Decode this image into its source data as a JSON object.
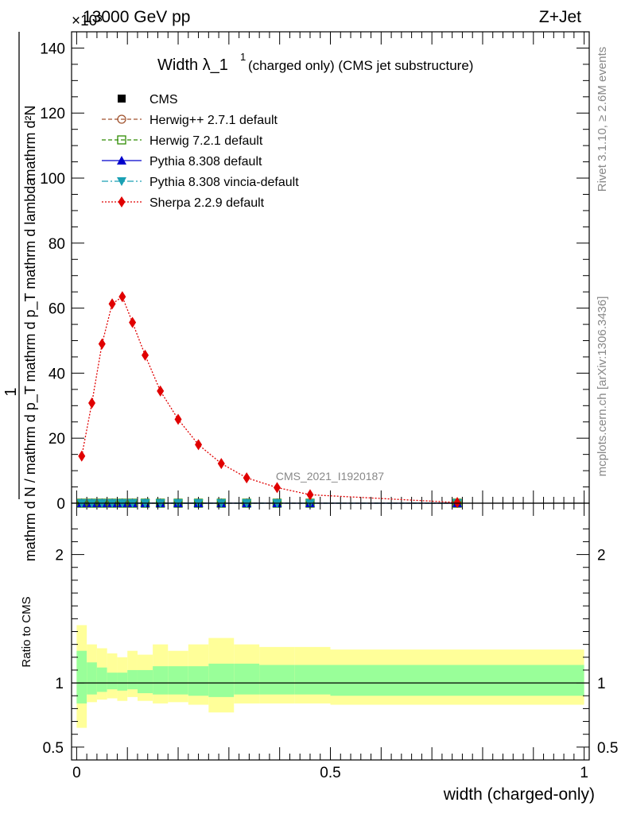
{
  "header": {
    "left": "13000 GeV pp",
    "right": "Z+Jet",
    "multiplier": "×10³"
  },
  "side_labels": {
    "rivet": "Rivet 3.1.10, ≥ 2.6M events",
    "mcplots": "mcplots.cern.ch [arXiv:1306.3436]"
  },
  "watermark": "CMS_2021_I1920187",
  "chart_data": [
    {
      "type": "line",
      "title": "Width λ_1¹",
      "title_main": "Width λ_1",
      "title_sup": "1",
      "title_suffix": "(charged only) (CMS jet substructure)",
      "ylabel_numerator": "1",
      "ylabel_denominator": "mathrm d N / mathrm d p_T mathrm d p_T mathrm d lambda",
      "ylabel_numerator2": "mathrm d²N",
      "ylabel_denominator2": "mathrm d p_T mathrm d p_T mathrm d lambda",
      "ylim": [
        0,
        145000
      ],
      "yticks": [
        0,
        20,
        40,
        60,
        80,
        100,
        120,
        140
      ],
      "xlim": [
        -0.01,
        1.01
      ],
      "legend_placement": "top-left",
      "series": [
        {
          "name": "CMS",
          "color": "#000000",
          "marker": "square-filled",
          "line": "none",
          "x": [
            0.01,
            0.03,
            0.05,
            0.07,
            0.09,
            0.11,
            0.135,
            0.165,
            0.2,
            0.24,
            0.285,
            0.335,
            0.395,
            0.46,
            0.75
          ],
          "y": [
            0,
            0,
            0,
            0,
            0,
            0,
            0,
            0,
            0,
            0,
            0,
            0,
            0,
            0,
            0
          ]
        },
        {
          "name": "Herwig++ 2.7.1 default",
          "color": "#a0522d",
          "marker": "circle-open",
          "line": "dashed",
          "x": [
            0.01,
            0.03,
            0.05,
            0.07,
            0.09,
            0.11,
            0.135,
            0.165,
            0.2,
            0.24,
            0.285,
            0.335,
            0.395,
            0.46,
            0.75
          ],
          "y": [
            0,
            0,
            0,
            0,
            0,
            0,
            0,
            0,
            0,
            0,
            0,
            0,
            0,
            0,
            0
          ]
        },
        {
          "name": "Herwig 7.2.1 default",
          "color": "#2e8b00",
          "marker": "square-open",
          "line": "dashed",
          "x": [
            0.01,
            0.03,
            0.05,
            0.07,
            0.09,
            0.11,
            0.135,
            0.165,
            0.2,
            0.24,
            0.285,
            0.335,
            0.395,
            0.46,
            0.75
          ],
          "y": [
            0,
            0,
            0,
            0,
            0,
            0,
            0,
            0,
            0,
            0,
            0,
            0,
            0,
            0,
            0
          ]
        },
        {
          "name": "Pythia 8.308 default",
          "color": "#0000cc",
          "marker": "triangle-up",
          "line": "solid",
          "x": [
            0.01,
            0.03,
            0.05,
            0.07,
            0.09,
            0.11,
            0.135,
            0.165,
            0.2,
            0.24,
            0.285,
            0.335,
            0.395,
            0.46,
            0.75
          ],
          "y": [
            0,
            0,
            0,
            0,
            0,
            0,
            0,
            0,
            0,
            0,
            0,
            0,
            0,
            0,
            0
          ]
        },
        {
          "name": "Pythia 8.308 vincia-default",
          "color": "#1aa0b4",
          "marker": "triangle-down",
          "line": "dashdot",
          "x": [
            0.01,
            0.03,
            0.05,
            0.07,
            0.09,
            0.11,
            0.135,
            0.165,
            0.2,
            0.24,
            0.285,
            0.335,
            0.395,
            0.46,
            0.75
          ],
          "y": [
            0,
            0,
            0,
            0,
            0,
            0,
            0,
            0,
            0,
            0,
            0,
            0,
            0,
            0,
            0
          ]
        },
        {
          "name": "Sherpa 2.2.9 default",
          "color": "#e00000",
          "marker": "diamond",
          "line": "dotted",
          "x": [
            0.01,
            0.03,
            0.05,
            0.07,
            0.09,
            0.11,
            0.135,
            0.165,
            0.2,
            0.24,
            0.285,
            0.335,
            0.395,
            0.46,
            0.75
          ],
          "y": [
            14500,
            30800,
            49000,
            61300,
            63500,
            55600,
            45500,
            34500,
            25800,
            18000,
            12200,
            7800,
            4800,
            2600,
            200
          ]
        }
      ]
    },
    {
      "type": "area",
      "ylabel": "Ratio to CMS",
      "xlabel": "width (charged-only)",
      "xlim": [
        -0.01,
        1.01
      ],
      "ylim": [
        0.4,
        2.4
      ],
      "xticks": [
        0,
        0.5,
        1
      ],
      "xtick_labels": [
        "0",
        "0.5",
        "1"
      ],
      "yticks": [
        0.5,
        1,
        2
      ],
      "ytick_labels": [
        "0.5",
        "1",
        "2"
      ],
      "bands": {
        "edges": [
          0,
          0.02,
          0.04,
          0.06,
          0.08,
          0.1,
          0.12,
          0.15,
          0.18,
          0.22,
          0.26,
          0.31,
          0.36,
          0.43,
          0.5,
          1.0
        ],
        "stat_syst": {
          "color": "#ffff99",
          "lo": [
            0.65,
            0.85,
            0.87,
            0.88,
            0.86,
            0.89,
            0.86,
            0.84,
            0.85,
            0.83,
            0.77,
            0.84,
            0.84,
            0.84,
            0.83
          ],
          "hi": [
            1.45,
            1.3,
            1.27,
            1.23,
            1.2,
            1.25,
            1.22,
            1.3,
            1.25,
            1.3,
            1.35,
            1.3,
            1.28,
            1.28,
            1.26
          ]
        },
        "stat": {
          "color": "#99ff99",
          "lo": [
            0.84,
            0.91,
            0.93,
            0.95,
            0.94,
            0.95,
            0.92,
            0.91,
            0.91,
            0.9,
            0.89,
            0.91,
            0.91,
            0.91,
            0.9
          ],
          "hi": [
            1.25,
            1.16,
            1.12,
            1.08,
            1.08,
            1.1,
            1.1,
            1.13,
            1.13,
            1.13,
            1.15,
            1.15,
            1.14,
            1.14,
            1.14
          ]
        }
      },
      "reference_line": 1
    }
  ]
}
